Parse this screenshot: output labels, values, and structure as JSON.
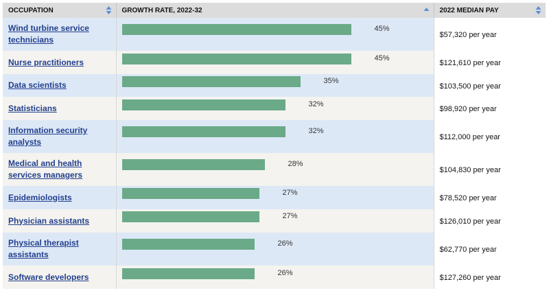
{
  "columns": {
    "occupation": "OCCUPATION",
    "growth": "GROWTH RATE, 2022-32",
    "pay": "2022 MEDIAN PAY"
  },
  "rows": [
    {
      "occupation": "Wind turbine service technicians",
      "growth_pct": 45,
      "growth_label": "45%",
      "pay": "$57,320 per year"
    },
    {
      "occupation": "Nurse practitioners",
      "growth_pct": 45,
      "growth_label": "45%",
      "pay": "$121,610 per year"
    },
    {
      "occupation": "Data scientists",
      "growth_pct": 35,
      "growth_label": "35%",
      "pay": "$103,500 per year"
    },
    {
      "occupation": "Statisticians",
      "growth_pct": 32,
      "growth_label": "32%",
      "pay": "$98,920 per year"
    },
    {
      "occupation": "Information security analysts",
      "growth_pct": 32,
      "growth_label": "32%",
      "pay": "$112,000 per year"
    },
    {
      "occupation": "Medical and health services managers",
      "growth_pct": 28,
      "growth_label": "28%",
      "pay": "$104,830 per year"
    },
    {
      "occupation": "Epidemiologists",
      "growth_pct": 27,
      "growth_label": "27%",
      "pay": "$78,520 per year"
    },
    {
      "occupation": "Physician assistants",
      "growth_pct": 27,
      "growth_label": "27%",
      "pay": "$126,010 per year"
    },
    {
      "occupation": "Physical therapist assistants",
      "growth_pct": 26,
      "growth_label": "26%",
      "pay": "$62,770 per year"
    },
    {
      "occupation": "Software developers",
      "growth_pct": 26,
      "growth_label": "26%",
      "pay": "$127,260 per year"
    }
  ],
  "colors": {
    "bar": "#6aaa88",
    "link": "#23408e",
    "sort_icon": "#5b8fd6",
    "header_bg": "#dcdcdc"
  },
  "icons": {
    "occupation_sort": "sort-both-icon",
    "growth_sort": "sort-up-icon",
    "pay_sort": "sort-both-icon"
  }
}
